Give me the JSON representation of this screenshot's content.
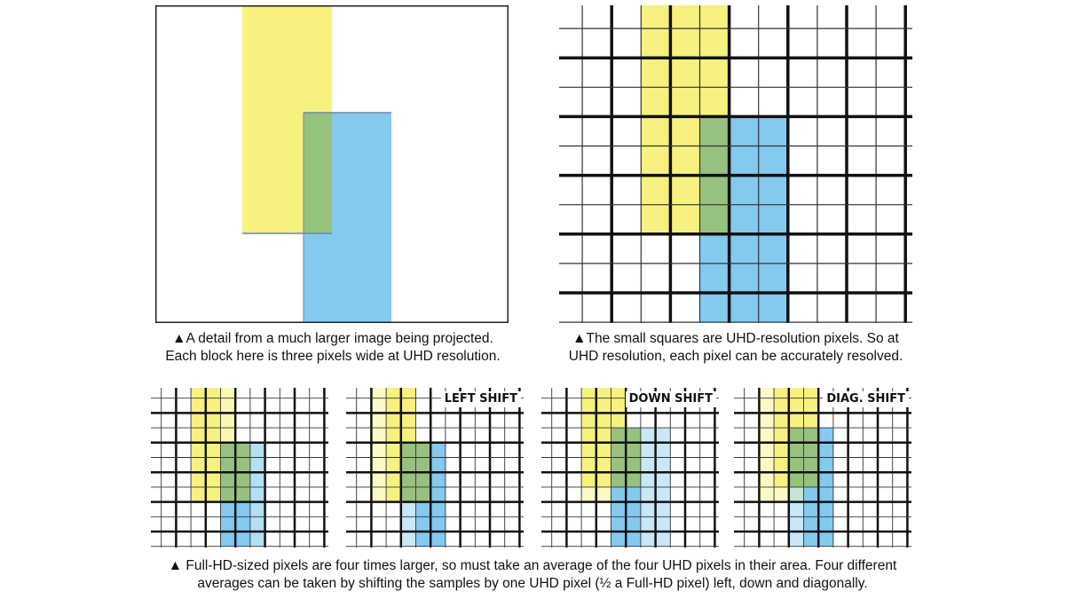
{
  "colors": {
    "yellow": "#f7f17f",
    "blue": "#84c9ee",
    "green": "#97c17f",
    "grid_major": "#111111",
    "grid_minor": "#333333"
  },
  "top_left": {
    "caption_line1": "▲A detail from a much larger image being projected.",
    "caption_line2": "Each block here is three pixels wide at UHD resolution."
  },
  "top_right": {
    "caption_line1": "▲The small squares are UHD-resolution pixels. So at",
    "caption_line2": "UHD resolution, each pixel can be accurately resolved."
  },
  "bottom": {
    "panels": [
      {
        "label": ""
      },
      {
        "label": "LEFT SHIFT"
      },
      {
        "label": "DOWN SHIFT"
      },
      {
        "label": "DIAG. SHIFT"
      }
    ],
    "caption_line1": "▲ Full-HD-sized pixels are four times larger, so must take an average of the four UHD pixels in their area. Four different",
    "caption_line2": "averages can be taken by shifting the samples by one UHD pixel (½ a Full-HD pixel) left, down and diagonally."
  }
}
